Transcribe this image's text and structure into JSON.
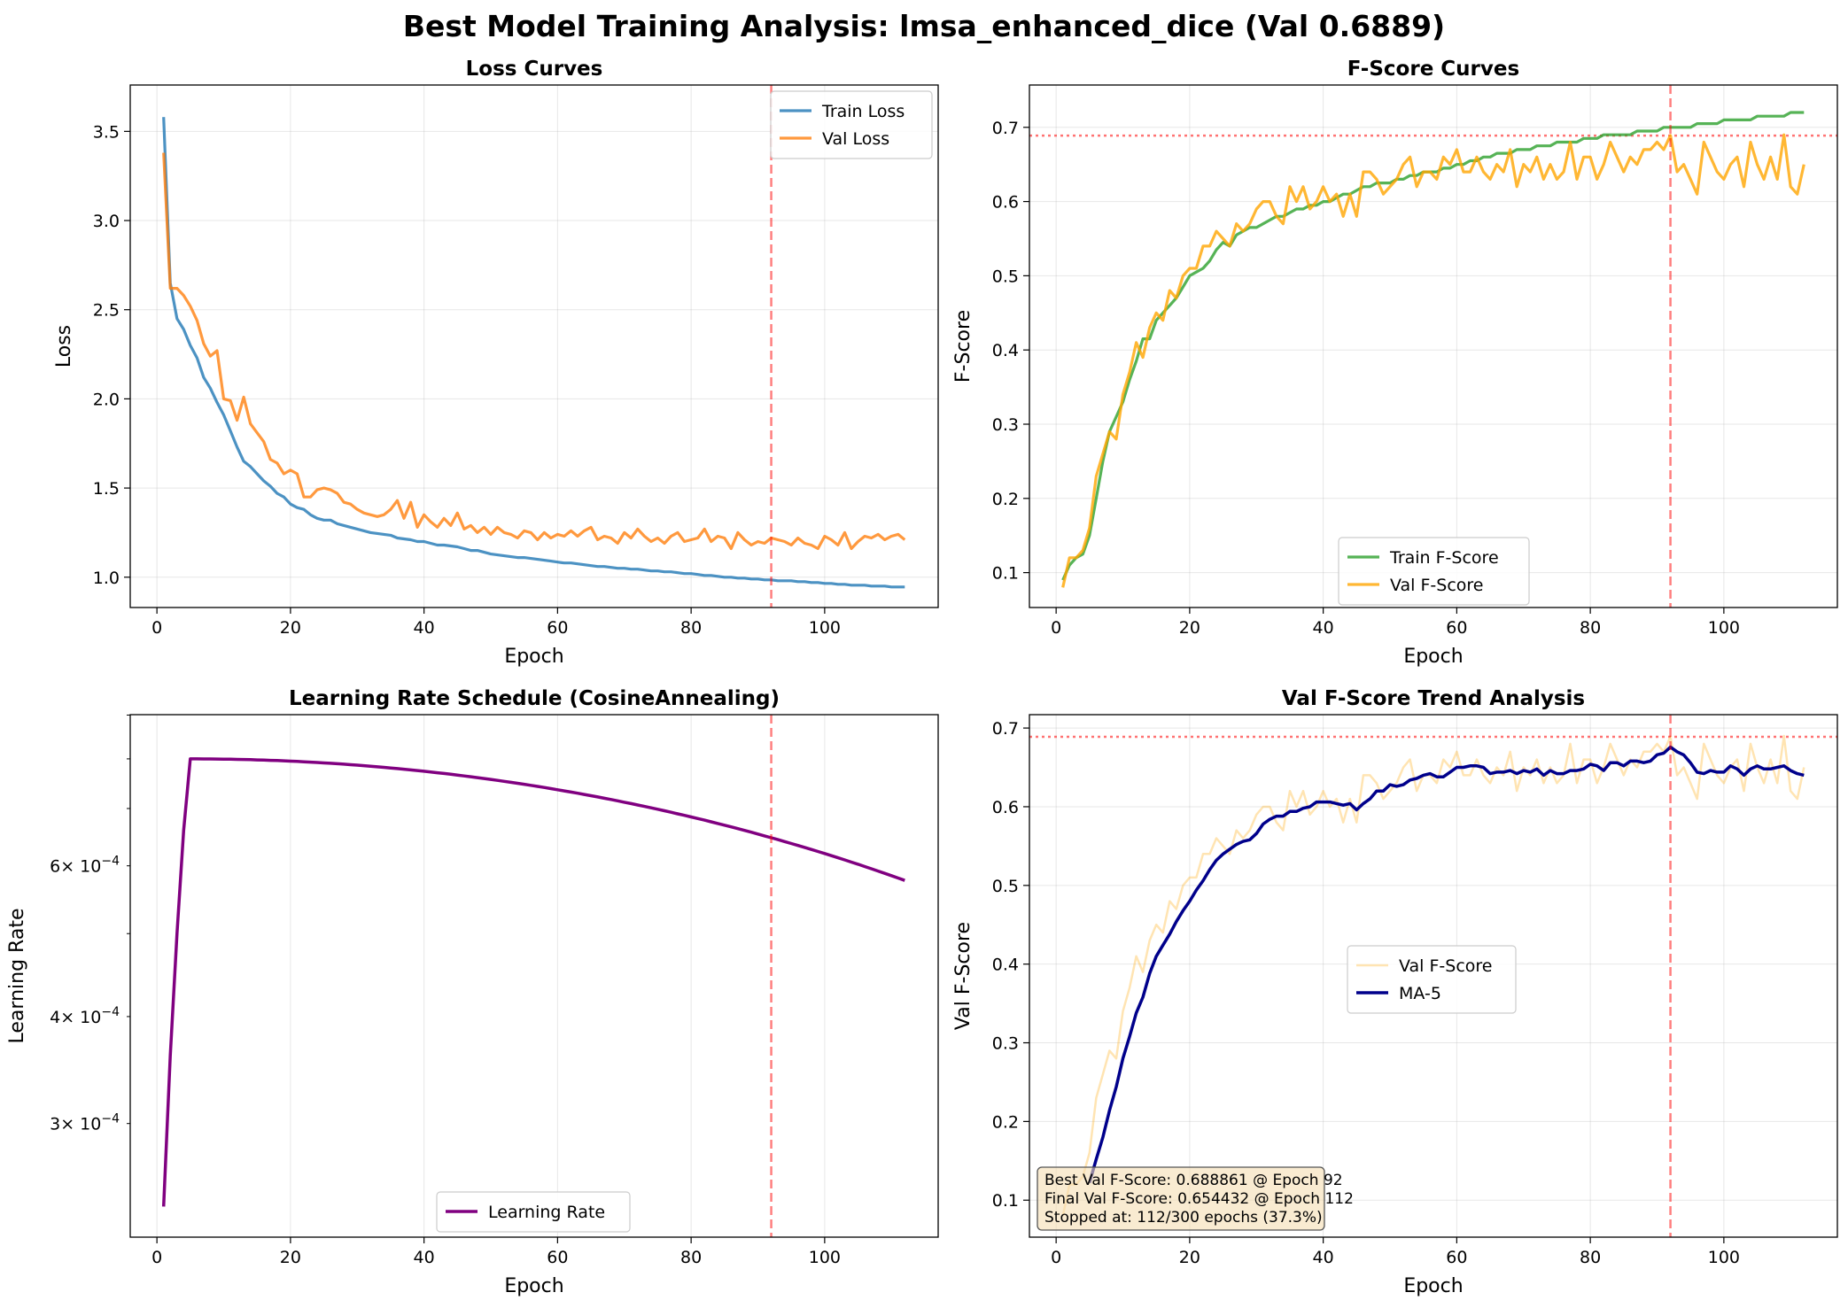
{
  "suptitle": "Best Model Training Analysis: lmsa_enhanced_dice (Val 0.6889)",
  "best_epoch_line": 92,
  "best_val_line": 0.6889,
  "colors": {
    "train_loss": "#1f77b4",
    "val_loss": "#ff7f0e",
    "train_f": "#2ca02c",
    "val_f": "#ffa500",
    "lr": "#800080",
    "ma": "#00008b",
    "ref": "#ff0000"
  },
  "panels": {
    "loss": {
      "title": "Loss Curves",
      "xlabel": "Epoch",
      "ylabel": "Loss",
      "xticks": [
        "0",
        "20",
        "40",
        "60",
        "80",
        "100"
      ],
      "yticks": [
        "1.0",
        "1.5",
        "2.0",
        "2.5",
        "3.0",
        "3.5"
      ],
      "legend": [
        "Train Loss",
        "Val Loss"
      ]
    },
    "fscore": {
      "title": "F-Score Curves",
      "xlabel": "Epoch",
      "ylabel": "F-Score",
      "xticks": [
        "0",
        "20",
        "40",
        "60",
        "80",
        "100"
      ],
      "yticks": [
        "0.1",
        "0.2",
        "0.3",
        "0.4",
        "0.5",
        "0.6",
        "0.7"
      ],
      "legend": [
        "Train F-Score",
        "Val F-Score"
      ]
    },
    "lr": {
      "title": "Learning Rate Schedule (CosineAnnealing)",
      "xlabel": "Epoch",
      "ylabel": "Learning Rate",
      "xticks": [
        "0",
        "20",
        "40",
        "60",
        "80",
        "100"
      ],
      "ytick_bases": [
        "3",
        "4",
        "6"
      ],
      "ytick_mult": "× 10",
      "ytick_exp": "−4",
      "legend": [
        "Learning Rate"
      ]
    },
    "trend": {
      "title": "Val F-Score Trend Analysis",
      "xlabel": "Epoch",
      "ylabel": "Val F-Score",
      "xticks": [
        "0",
        "20",
        "40",
        "60",
        "80",
        "100"
      ],
      "yticks": [
        "0.1",
        "0.2",
        "0.3",
        "0.4",
        "0.5",
        "0.6",
        "0.7"
      ],
      "legend": [
        "Val F-Score",
        "MA-5"
      ],
      "annotation": [
        "Best Val F-Score: 0.688861 @ Epoch 92",
        "Final Val F-Score: 0.654432 @ Epoch 112",
        "Stopped at: 112/300 epochs (37.3%)"
      ]
    }
  },
  "chart_data": [
    {
      "type": "line",
      "title": "Loss Curves",
      "xlabel": "Epoch",
      "ylabel": "Loss",
      "xlim": [
        -4,
        117
      ],
      "ylim": [
        0.83,
        3.76
      ],
      "x": {
        "start": 1,
        "end": 112,
        "step": 1
      },
      "series": [
        {
          "name": "Train Loss",
          "values": [
            3.58,
            2.65,
            2.45,
            2.39,
            2.3,
            2.23,
            2.12,
            2.06,
            1.98,
            1.91,
            1.82,
            1.73,
            1.65,
            1.62,
            1.58,
            1.54,
            1.51,
            1.47,
            1.45,
            1.41,
            1.39,
            1.38,
            1.35,
            1.33,
            1.32,
            1.32,
            1.3,
            1.29,
            1.28,
            1.27,
            1.26,
            1.25,
            1.245,
            1.24,
            1.235,
            1.22,
            1.215,
            1.21,
            1.2,
            1.2,
            1.19,
            1.18,
            1.18,
            1.175,
            1.17,
            1.16,
            1.15,
            1.15,
            1.14,
            1.13,
            1.125,
            1.12,
            1.115,
            1.11,
            1.11,
            1.105,
            1.1,
            1.095,
            1.09,
            1.085,
            1.08,
            1.08,
            1.075,
            1.07,
            1.065,
            1.06,
            1.06,
            1.055,
            1.05,
            1.05,
            1.045,
            1.045,
            1.04,
            1.035,
            1.035,
            1.03,
            1.03,
            1.025,
            1.02,
            1.02,
            1.015,
            1.01,
            1.01,
            1.005,
            1.0,
            1.0,
            0.995,
            0.995,
            0.99,
            0.99,
            0.985,
            0.985,
            0.98,
            0.98,
            0.98,
            0.975,
            0.975,
            0.97,
            0.97,
            0.965,
            0.965,
            0.96,
            0.96,
            0.955,
            0.955,
            0.955,
            0.95,
            0.95,
            0.95,
            0.945,
            0.945,
            0.945
          ]
        },
        {
          "name": "Val Loss",
          "values": [
            3.38,
            2.62,
            2.62,
            2.58,
            2.52,
            2.44,
            2.31,
            2.24,
            2.27,
            2.0,
            1.99,
            1.88,
            2.01,
            1.86,
            1.81,
            1.76,
            1.66,
            1.64,
            1.58,
            1.6,
            1.58,
            1.45,
            1.45,
            1.49,
            1.5,
            1.49,
            1.47,
            1.42,
            1.41,
            1.38,
            1.36,
            1.35,
            1.34,
            1.35,
            1.38,
            1.43,
            1.33,
            1.42,
            1.28,
            1.35,
            1.31,
            1.28,
            1.33,
            1.29,
            1.36,
            1.27,
            1.29,
            1.25,
            1.28,
            1.24,
            1.28,
            1.25,
            1.24,
            1.22,
            1.26,
            1.25,
            1.21,
            1.25,
            1.22,
            1.24,
            1.23,
            1.26,
            1.23,
            1.26,
            1.28,
            1.21,
            1.23,
            1.22,
            1.19,
            1.25,
            1.22,
            1.27,
            1.23,
            1.2,
            1.22,
            1.19,
            1.23,
            1.25,
            1.2,
            1.21,
            1.22,
            1.27,
            1.2,
            1.23,
            1.22,
            1.16,
            1.25,
            1.21,
            1.18,
            1.2,
            1.19,
            1.22,
            1.21,
            1.2,
            1.18,
            1.22,
            1.19,
            1.18,
            1.16,
            1.23,
            1.21,
            1.18,
            1.25,
            1.16,
            1.2,
            1.23,
            1.22,
            1.24,
            1.21,
            1.23,
            1.24,
            1.21
          ]
        }
      ],
      "vline": 92,
      "legend_loc": "upper right",
      "grid": true
    },
    {
      "type": "line",
      "title": "F-Score Curves",
      "xlabel": "Epoch",
      "ylabel": "F-Score",
      "xlim": [
        -4,
        117
      ],
      "ylim": [
        0.053,
        0.757
      ],
      "x": {
        "start": 1,
        "end": 112,
        "step": 1
      },
      "series": [
        {
          "name": "Train F-Score",
          "values": [
            0.09,
            0.11,
            0.12,
            0.125,
            0.15,
            0.2,
            0.25,
            0.29,
            0.31,
            0.33,
            0.36,
            0.385,
            0.415,
            0.415,
            0.44,
            0.45,
            0.46,
            0.47,
            0.485,
            0.5,
            0.505,
            0.51,
            0.52,
            0.535,
            0.545,
            0.54,
            0.555,
            0.56,
            0.565,
            0.565,
            0.57,
            0.575,
            0.58,
            0.58,
            0.585,
            0.59,
            0.59,
            0.595,
            0.595,
            0.6,
            0.6,
            0.605,
            0.61,
            0.61,
            0.615,
            0.62,
            0.62,
            0.625,
            0.625,
            0.625,
            0.63,
            0.63,
            0.635,
            0.635,
            0.64,
            0.64,
            0.64,
            0.645,
            0.645,
            0.65,
            0.65,
            0.655,
            0.655,
            0.66,
            0.66,
            0.665,
            0.665,
            0.665,
            0.67,
            0.67,
            0.67,
            0.675,
            0.675,
            0.675,
            0.68,
            0.68,
            0.68,
            0.68,
            0.685,
            0.685,
            0.685,
            0.69,
            0.69,
            0.69,
            0.69,
            0.69,
            0.695,
            0.695,
            0.695,
            0.695,
            0.7,
            0.7,
            0.7,
            0.7,
            0.7,
            0.705,
            0.705,
            0.705,
            0.705,
            0.71,
            0.71,
            0.71,
            0.71,
            0.71,
            0.715,
            0.715,
            0.715,
            0.715,
            0.715,
            0.72,
            0.72,
            0.72
          ]
        },
        {
          "name": "Val F-Score",
          "values": [
            0.08,
            0.12,
            0.12,
            0.13,
            0.16,
            0.23,
            0.26,
            0.29,
            0.28,
            0.34,
            0.37,
            0.41,
            0.39,
            0.43,
            0.45,
            0.44,
            0.48,
            0.47,
            0.5,
            0.51,
            0.51,
            0.54,
            0.54,
            0.56,
            0.55,
            0.54,
            0.57,
            0.56,
            0.57,
            0.59,
            0.6,
            0.6,
            0.58,
            0.57,
            0.62,
            0.6,
            0.62,
            0.59,
            0.6,
            0.62,
            0.6,
            0.61,
            0.58,
            0.61,
            0.58,
            0.64,
            0.64,
            0.63,
            0.61,
            0.62,
            0.63,
            0.65,
            0.66,
            0.62,
            0.64,
            0.64,
            0.63,
            0.66,
            0.65,
            0.67,
            0.64,
            0.64,
            0.66,
            0.64,
            0.63,
            0.65,
            0.64,
            0.67,
            0.62,
            0.65,
            0.64,
            0.66,
            0.63,
            0.65,
            0.63,
            0.64,
            0.68,
            0.63,
            0.66,
            0.66,
            0.63,
            0.65,
            0.68,
            0.66,
            0.64,
            0.66,
            0.65,
            0.67,
            0.67,
            0.68,
            0.67,
            0.689,
            0.64,
            0.65,
            0.63,
            0.61,
            0.68,
            0.66,
            0.64,
            0.63,
            0.65,
            0.66,
            0.62,
            0.68,
            0.65,
            0.63,
            0.66,
            0.63,
            0.69,
            0.62,
            0.61,
            0.65
          ]
        }
      ],
      "hline": 0.6889,
      "vline": 92,
      "legend_loc": "lower center",
      "grid": true
    },
    {
      "type": "line",
      "title": "Learning Rate Schedule (CosineAnnealing)",
      "xlabel": "Epoch",
      "ylabel": "Learning Rate",
      "yscale": "log",
      "xlim": [
        -4,
        117
      ],
      "ylim": [
        0.000221,
        0.000901
      ],
      "x": {
        "start": 1,
        "end": 112,
        "step": 1
      },
      "warmup": [
        0.00024,
        0.00036,
        0.0005,
        0.00066
      ],
      "cosine": {
        "peak": 0.0008,
        "min": 1e-05,
        "t_max": 300,
        "from_epoch": 5
      },
      "series": [
        {
          "name": "Learning Rate"
        }
      ],
      "vline": 92,
      "legend_loc": "lower center",
      "grid": true
    },
    {
      "type": "line",
      "title": "Val F-Score Trend Analysis",
      "xlabel": "Epoch",
      "ylabel": "Val F-Score",
      "xlim": [
        -4,
        117
      ],
      "ylim": [
        0.053,
        0.717
      ],
      "x": {
        "start": 1,
        "end": 112,
        "step": 1
      },
      "series": [
        {
          "name": "Val F-Score",
          "source": "F-Score Curves / Val F-Score"
        },
        {
          "name": "MA-5",
          "moving_average_window": 5
        }
      ],
      "hline": 0.6889,
      "vline": 92,
      "legend_loc": "center",
      "grid": true
    }
  ]
}
